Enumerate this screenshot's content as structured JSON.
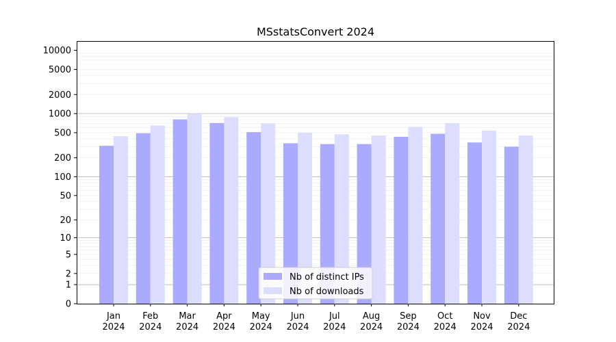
{
  "chart_data": {
    "type": "bar",
    "title": "MSstatsConvert 2024",
    "categories": [
      "Jan\n2024",
      "Feb\n2024",
      "Mar\n2024",
      "Apr\n2024",
      "May\n2024",
      "Jun\n2024",
      "Jul\n2024",
      "Aug\n2024",
      "Sep\n2024",
      "Oct\n2024",
      "Nov\n2024",
      "Dec\n2024"
    ],
    "series": [
      {
        "name": "Nb of distinct IPs",
        "color": "#aaaaff",
        "values": [
          310,
          490,
          810,
          710,
          510,
          340,
          330,
          330,
          430,
          480,
          350,
          300
        ]
      },
      {
        "name": "Nb of downloads",
        "color": "#ddddff",
        "values": [
          440,
          650,
          1000,
          880,
          700,
          500,
          470,
          450,
          620,
          710,
          540,
          450
        ]
      }
    ],
    "y_scale": "symlog",
    "y_ticks": [
      0,
      1,
      2,
      5,
      10,
      20,
      50,
      100,
      200,
      500,
      1000,
      2000,
      5000,
      10000
    ],
    "y_tick_labels": [
      "0",
      "1",
      "2",
      "5",
      "10",
      "20",
      "50",
      "100",
      "200",
      "500",
      "1000",
      "2000",
      "5000",
      "10000"
    ],
    "ylim": [
      0,
      14000
    ],
    "grid": true,
    "legend_position": "bottom-center"
  }
}
